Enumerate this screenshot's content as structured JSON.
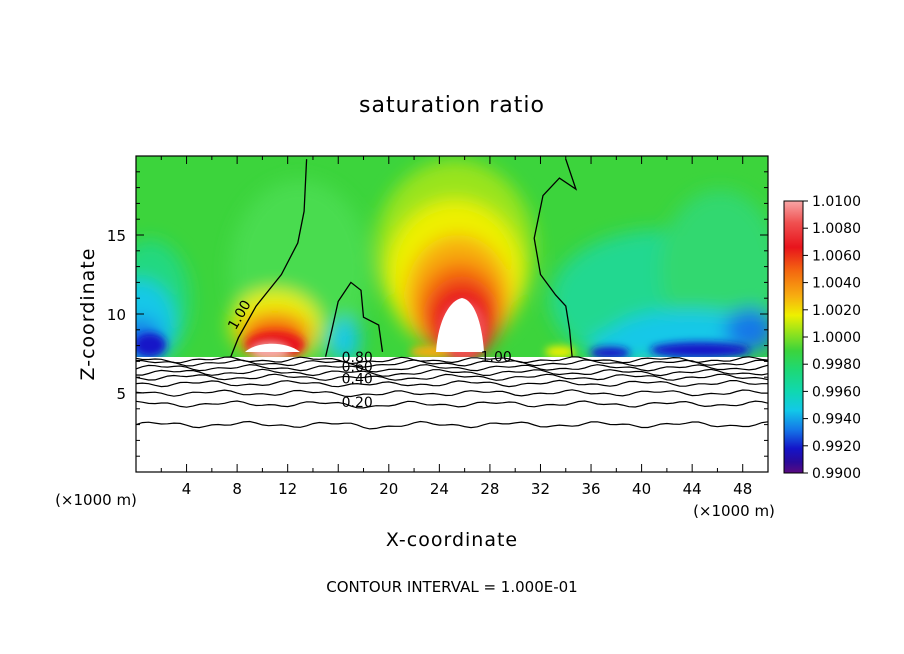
{
  "chart_data": {
    "type": "heatmap",
    "title": "saturation ratio",
    "xlabel": "X-coordinate",
    "ylabel": "Z-coordinate",
    "x_unit": "(×1000 m)",
    "x_ticks": [
      4,
      8,
      12,
      16,
      20,
      24,
      28,
      32,
      36,
      40,
      44,
      48
    ],
    "y_ticks": [
      5,
      10,
      15
    ],
    "xlim": [
      0,
      50
    ],
    "ylim": [
      0,
      20
    ],
    "colorbar": {
      "ticks": [
        "1.0100",
        "1.0080",
        "1.0060",
        "1.0040",
        "1.0020",
        "1.0000",
        "0.9980",
        "0.9960",
        "0.9940",
        "0.9920",
        "0.9900"
      ],
      "range": [
        0.99,
        1.01
      ]
    },
    "contour_labels": [
      {
        "text": "1.00",
        "x": 8.5,
        "z": 9.8,
        "angle": -60
      },
      {
        "text": "1.00",
        "x": 28.5,
        "z": 7.0,
        "angle": 0
      },
      {
        "text": "0.80",
        "x": 17.5,
        "z": 6.95,
        "angle": 0
      },
      {
        "text": "0.60",
        "x": 17.5,
        "z": 6.35,
        "angle": 0
      },
      {
        "text": "0.40",
        "x": 17.5,
        "z": 5.6,
        "angle": 0
      },
      {
        "text": "0.20",
        "x": 17.5,
        "z": 4.1,
        "angle": 0
      }
    ],
    "contour_interval_note": "CONTOUR INTERVAL = 1.000E-01"
  }
}
